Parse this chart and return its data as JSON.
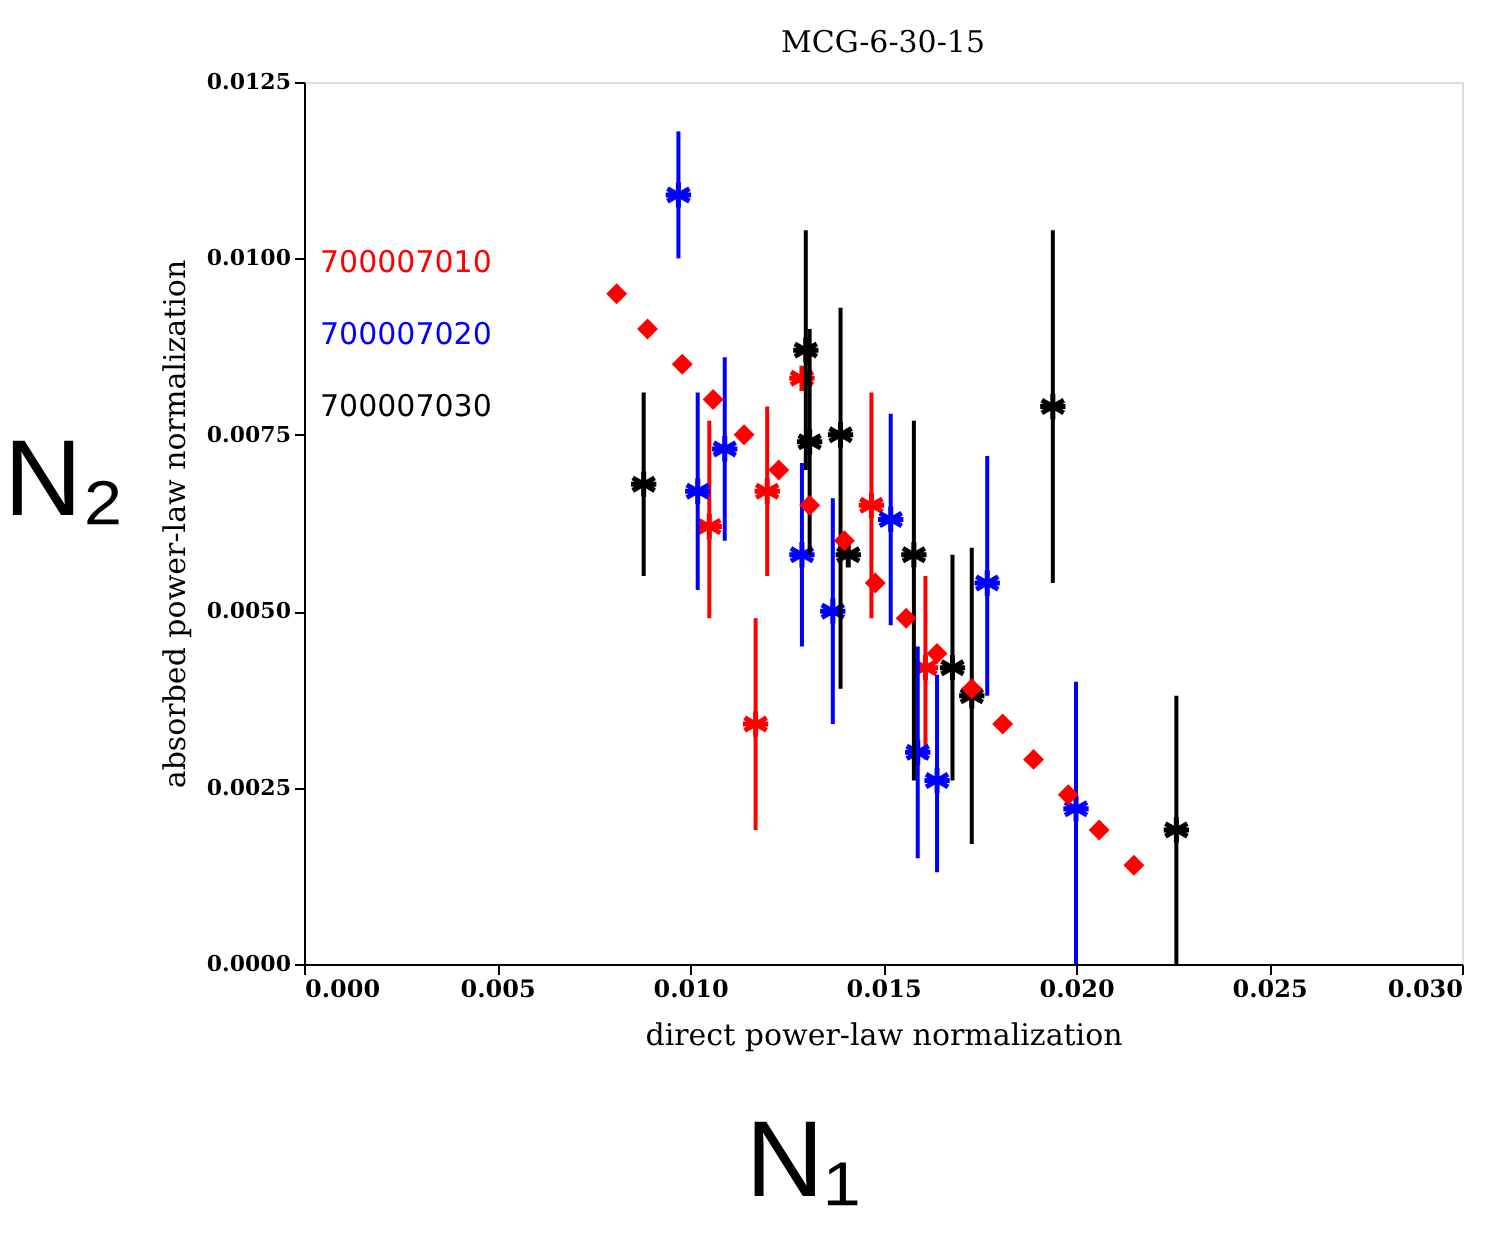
{
  "chart_data": {
    "type": "scatter",
    "title": "MCG-6-30-15",
    "xlabel": "direct power-law normalization",
    "ylabel": "absorbed power-law normalization",
    "annotations": [
      "N₂",
      "N₁"
    ],
    "xlim": [
      0,
      0.03
    ],
    "xticks": [
      {
        "value": 0,
        "label": "0.000"
      },
      0.005,
      {
        "value": 0.01,
        "label": "0.010"
      },
      0.015,
      {
        "value": 0.02,
        "label": "0.020"
      },
      0.025,
      {
        "value": 0.03,
        "label": "0.030"
      }
    ],
    "ylim": [
      0,
      0.0125
    ],
    "yticks": [
      {
        "value": 0,
        "label": "0.0000"
      },
      0.0025,
      {
        "value": 0.005,
        "label": "0.0050"
      },
      0.0075,
      {
        "value": 0.01,
        "label": "0.0100"
      },
      0.0125
    ],
    "grid": false,
    "legend": "top left",
    "series": [
      {
        "name": "700007010",
        "color": "#ff0000",
        "marker": "cross",
        "x": [
          0.0129,
          0.0105,
          0.012,
          0.0117,
          0.0147,
          0.0161
        ],
        "values": [
          0.0083,
          0.0062,
          0.0067,
          0.0034,
          0.0065,
          0.0042
        ],
        "errors": [
          null,
          [
            0.0049,
            0.0077
          ],
          [
            0.0055,
            0.0079
          ],
          [
            0.0019,
            0.0049
          ],
          [
            0.0049,
            0.0081
          ],
          [
            0.0029,
            0.0055
          ]
        ]
      },
      {
        "name": "700007020",
        "color": "#0000ff",
        "marker": "cross",
        "x": [
          0.0097,
          0.0102,
          0.0109,
          0.0129,
          0.0137,
          0.0152,
          0.0159,
          0.0164,
          0.0177,
          0.02
        ],
        "values": [
          0.0109,
          0.0067,
          0.0073,
          0.0058,
          0.005,
          0.0063,
          0.003,
          0.0026,
          0.0054,
          0.0022
        ],
        "errors": [
          [
            0.01,
            0.0118
          ],
          [
            0.0053,
            0.0081
          ],
          [
            0.006,
            0.0086
          ],
          [
            0.0045,
            0.0071
          ],
          [
            0.0034,
            0.0066
          ],
          [
            0.0048,
            0.0078
          ],
          [
            0.0015,
            0.0045
          ],
          [
            0.0013,
            0.0041
          ],
          [
            0.0038,
            0.0072
          ],
          [
            0,
            0.004
          ]
        ]
      },
      {
        "name": "700007030",
        "color": "#000000",
        "marker": "cross",
        "x": [
          0.0088,
          0.013,
          0.0131,
          0.0139,
          0.0141,
          0.0158,
          0.0168,
          0.0173,
          0.0194,
          0.0226
        ],
        "values": [
          0.0068,
          0.0087,
          0.0074,
          0.0075,
          0.0058,
          0.0058,
          0.0042,
          0.0038,
          0.0079,
          0.0019
        ],
        "errors": [
          [
            0.0055,
            0.0081
          ],
          [
            0.007,
            0.0104
          ],
          [
            0.0058,
            0.009
          ],
          [
            0.0039,
            0.0093
          ],
          null,
          [
            0.0026,
            0.0077
          ],
          [
            0.0026,
            0.0058
          ],
          [
            0.0017,
            0.0059
          ],
          [
            0.0054,
            0.0104
          ],
          [
            0,
            0.0038
          ]
        ]
      },
      {
        "color": "#ff0000",
        "marker": "diamond",
        "x": [
          0.0081,
          0.0089,
          0.0098,
          0.0106,
          0.0114,
          0.0123,
          0.0131,
          0.014,
          0.0148,
          0.0156,
          0.0164,
          0.0173,
          0.0181,
          0.0189,
          0.0198,
          0.0206,
          0.0215
        ],
        "values": [
          0.0095,
          0.009,
          0.0085,
          0.008,
          0.0075,
          0.007,
          0.0065,
          0.006,
          0.0054,
          0.0049,
          0.0044,
          0.0039,
          0.0034,
          0.0029,
          0.0024,
          0.0019,
          0.0014
        ]
      }
    ]
  }
}
